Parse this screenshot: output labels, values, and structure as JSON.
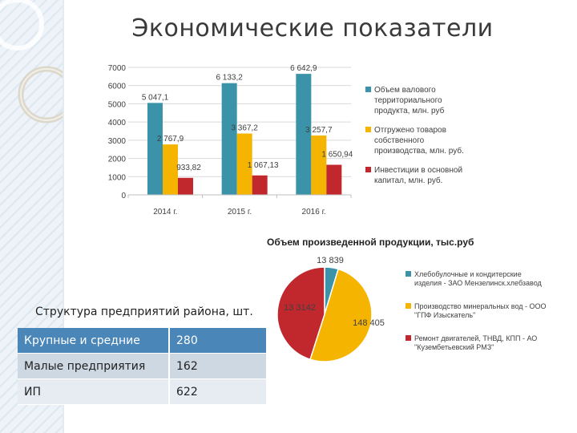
{
  "page": {
    "title": "Экономические показатели",
    "colors": {
      "teal": "#3a93a8",
      "yellow": "#f5b400",
      "red": "#c0282d",
      "accent": "#4a86b8"
    }
  },
  "chart_data": [
    {
      "type": "bar",
      "categories": [
        "2014 г.",
        "2015 г.",
        "2016 г."
      ],
      "ylim": [
        0,
        7000
      ],
      "yticks": [
        0,
        1000,
        2000,
        3000,
        4000,
        5000,
        6000,
        7000
      ],
      "grid": true,
      "legend_position": "right",
      "series": [
        {
          "name": "Объем валового территориального продукта, млн. руб",
          "color": "#3a93a8",
          "values": [
            5047.1,
            6133.2,
            6642.9
          ],
          "labels": [
            "5 047,1",
            "6 133,2",
            "6 642,9"
          ]
        },
        {
          "name": "Отгружено товаров собственного производства, млн. руб.",
          "color": "#f5b400",
          "values": [
            2767.9,
            3367.2,
            3257.7
          ],
          "labels": [
            "2 767,9",
            "3 367,2",
            "3 257,7"
          ]
        },
        {
          "name": "Инвестиции в основной капитал, млн. руб.",
          "color": "#c0282d",
          "values": [
            933.82,
            1067.13,
            1650.94
          ],
          "labels": [
            "933,82",
            "1 067,13",
            "1 650,94"
          ]
        }
      ]
    },
    {
      "type": "pie",
      "title": "Объем произведенной продукции, тыс.руб",
      "legend_position": "right",
      "slices": [
        {
          "name": "Хлебобулочные и кондитерские изделия - ЗАО Мензелинск.хлебзавод",
          "value": 13839,
          "label": "13 839",
          "color": "#3a93a8"
        },
        {
          "name": "Производство минеральных вод - ООО \"ГПФ Изыскатель\"",
          "value": 148405,
          "label": "148 405",
          "color": "#f5b400"
        },
        {
          "name": "Ремонт двигателей, ТНВД, КПП - АО \"Кузембетьевский РМЗ\"",
          "value": 133142,
          "label": "13 3142",
          "color": "#c0282d"
        }
      ]
    }
  ],
  "structure": {
    "caption": "Структура предприятий района, шт.",
    "rows": [
      {
        "name": "Крупные и средние",
        "value": "280"
      },
      {
        "name": "Малые предприятия",
        "value": "162"
      },
      {
        "name": "ИП",
        "value": "622"
      }
    ]
  }
}
